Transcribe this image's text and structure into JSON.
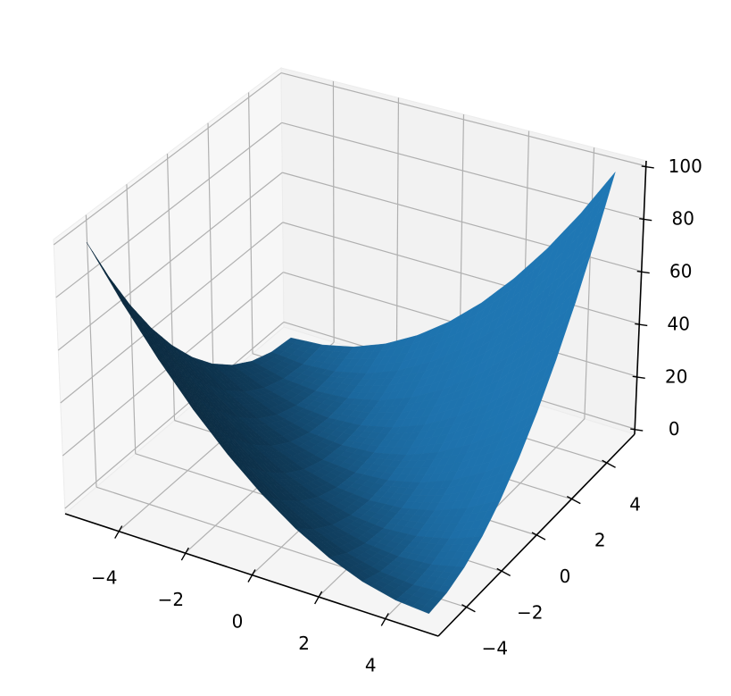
{
  "chart_data": {
    "type": "surface3d",
    "title": "",
    "xlabel": "",
    "ylabel": "",
    "zlabel": "",
    "xlim": [
      -5.6,
      5.6
    ],
    "ylim": [
      -5.6,
      5.6
    ],
    "zlim": [
      -2,
      102
    ],
    "grid": true,
    "surface_color": "#1f77b4",
    "x_ticks": [
      -4,
      -2,
      0,
      2,
      4
    ],
    "y_ticks": [
      -4,
      -2,
      0,
      2,
      4
    ],
    "z_ticks": [
      0,
      20,
      40,
      60,
      80,
      100
    ],
    "x_tick_labels": [
      "−4",
      "−2",
      "0",
      "2",
      "4"
    ],
    "y_tick_labels": [
      "−4",
      "−2",
      "0",
      "2",
      "4"
    ],
    "z_tick_labels": [
      "0",
      "20",
      "40",
      "60",
      "80",
      "100"
    ],
    "x": [
      -5,
      -4,
      -3,
      -2,
      -1,
      0,
      1,
      2,
      3,
      4,
      5
    ],
    "y": [
      -5,
      -4,
      -3,
      -2,
      -1,
      0,
      1,
      2,
      3,
      4,
      5
    ],
    "z": [
      [
        100,
        81,
        64,
        49,
        36,
        25,
        16,
        9,
        4,
        1,
        0
      ],
      [
        81,
        64,
        49,
        36,
        25,
        16,
        9,
        4,
        1,
        0,
        1
      ],
      [
        64,
        49,
        36,
        25,
        16,
        9,
        4,
        1,
        0,
        1,
        4
      ],
      [
        49,
        36,
        25,
        16,
        9,
        4,
        1,
        0,
        1,
        4,
        9
      ],
      [
        36,
        25,
        16,
        9,
        4,
        1,
        0,
        1,
        4,
        9,
        16
      ],
      [
        25,
        16,
        9,
        4,
        1,
        0,
        1,
        4,
        9,
        16,
        25
      ],
      [
        16,
        9,
        4,
        1,
        0,
        1,
        4,
        9,
        16,
        25,
        36
      ],
      [
        9,
        4,
        1,
        0,
        1,
        4,
        9,
        16,
        25,
        36,
        49
      ],
      [
        4,
        1,
        0,
        1,
        4,
        9,
        16,
        25,
        36,
        49,
        64
      ],
      [
        1,
        0,
        1,
        4,
        9,
        16,
        25,
        36,
        49,
        64,
        81
      ],
      [
        0,
        1,
        4,
        9,
        16,
        25,
        36,
        49,
        64,
        81,
        100
      ]
    ]
  }
}
